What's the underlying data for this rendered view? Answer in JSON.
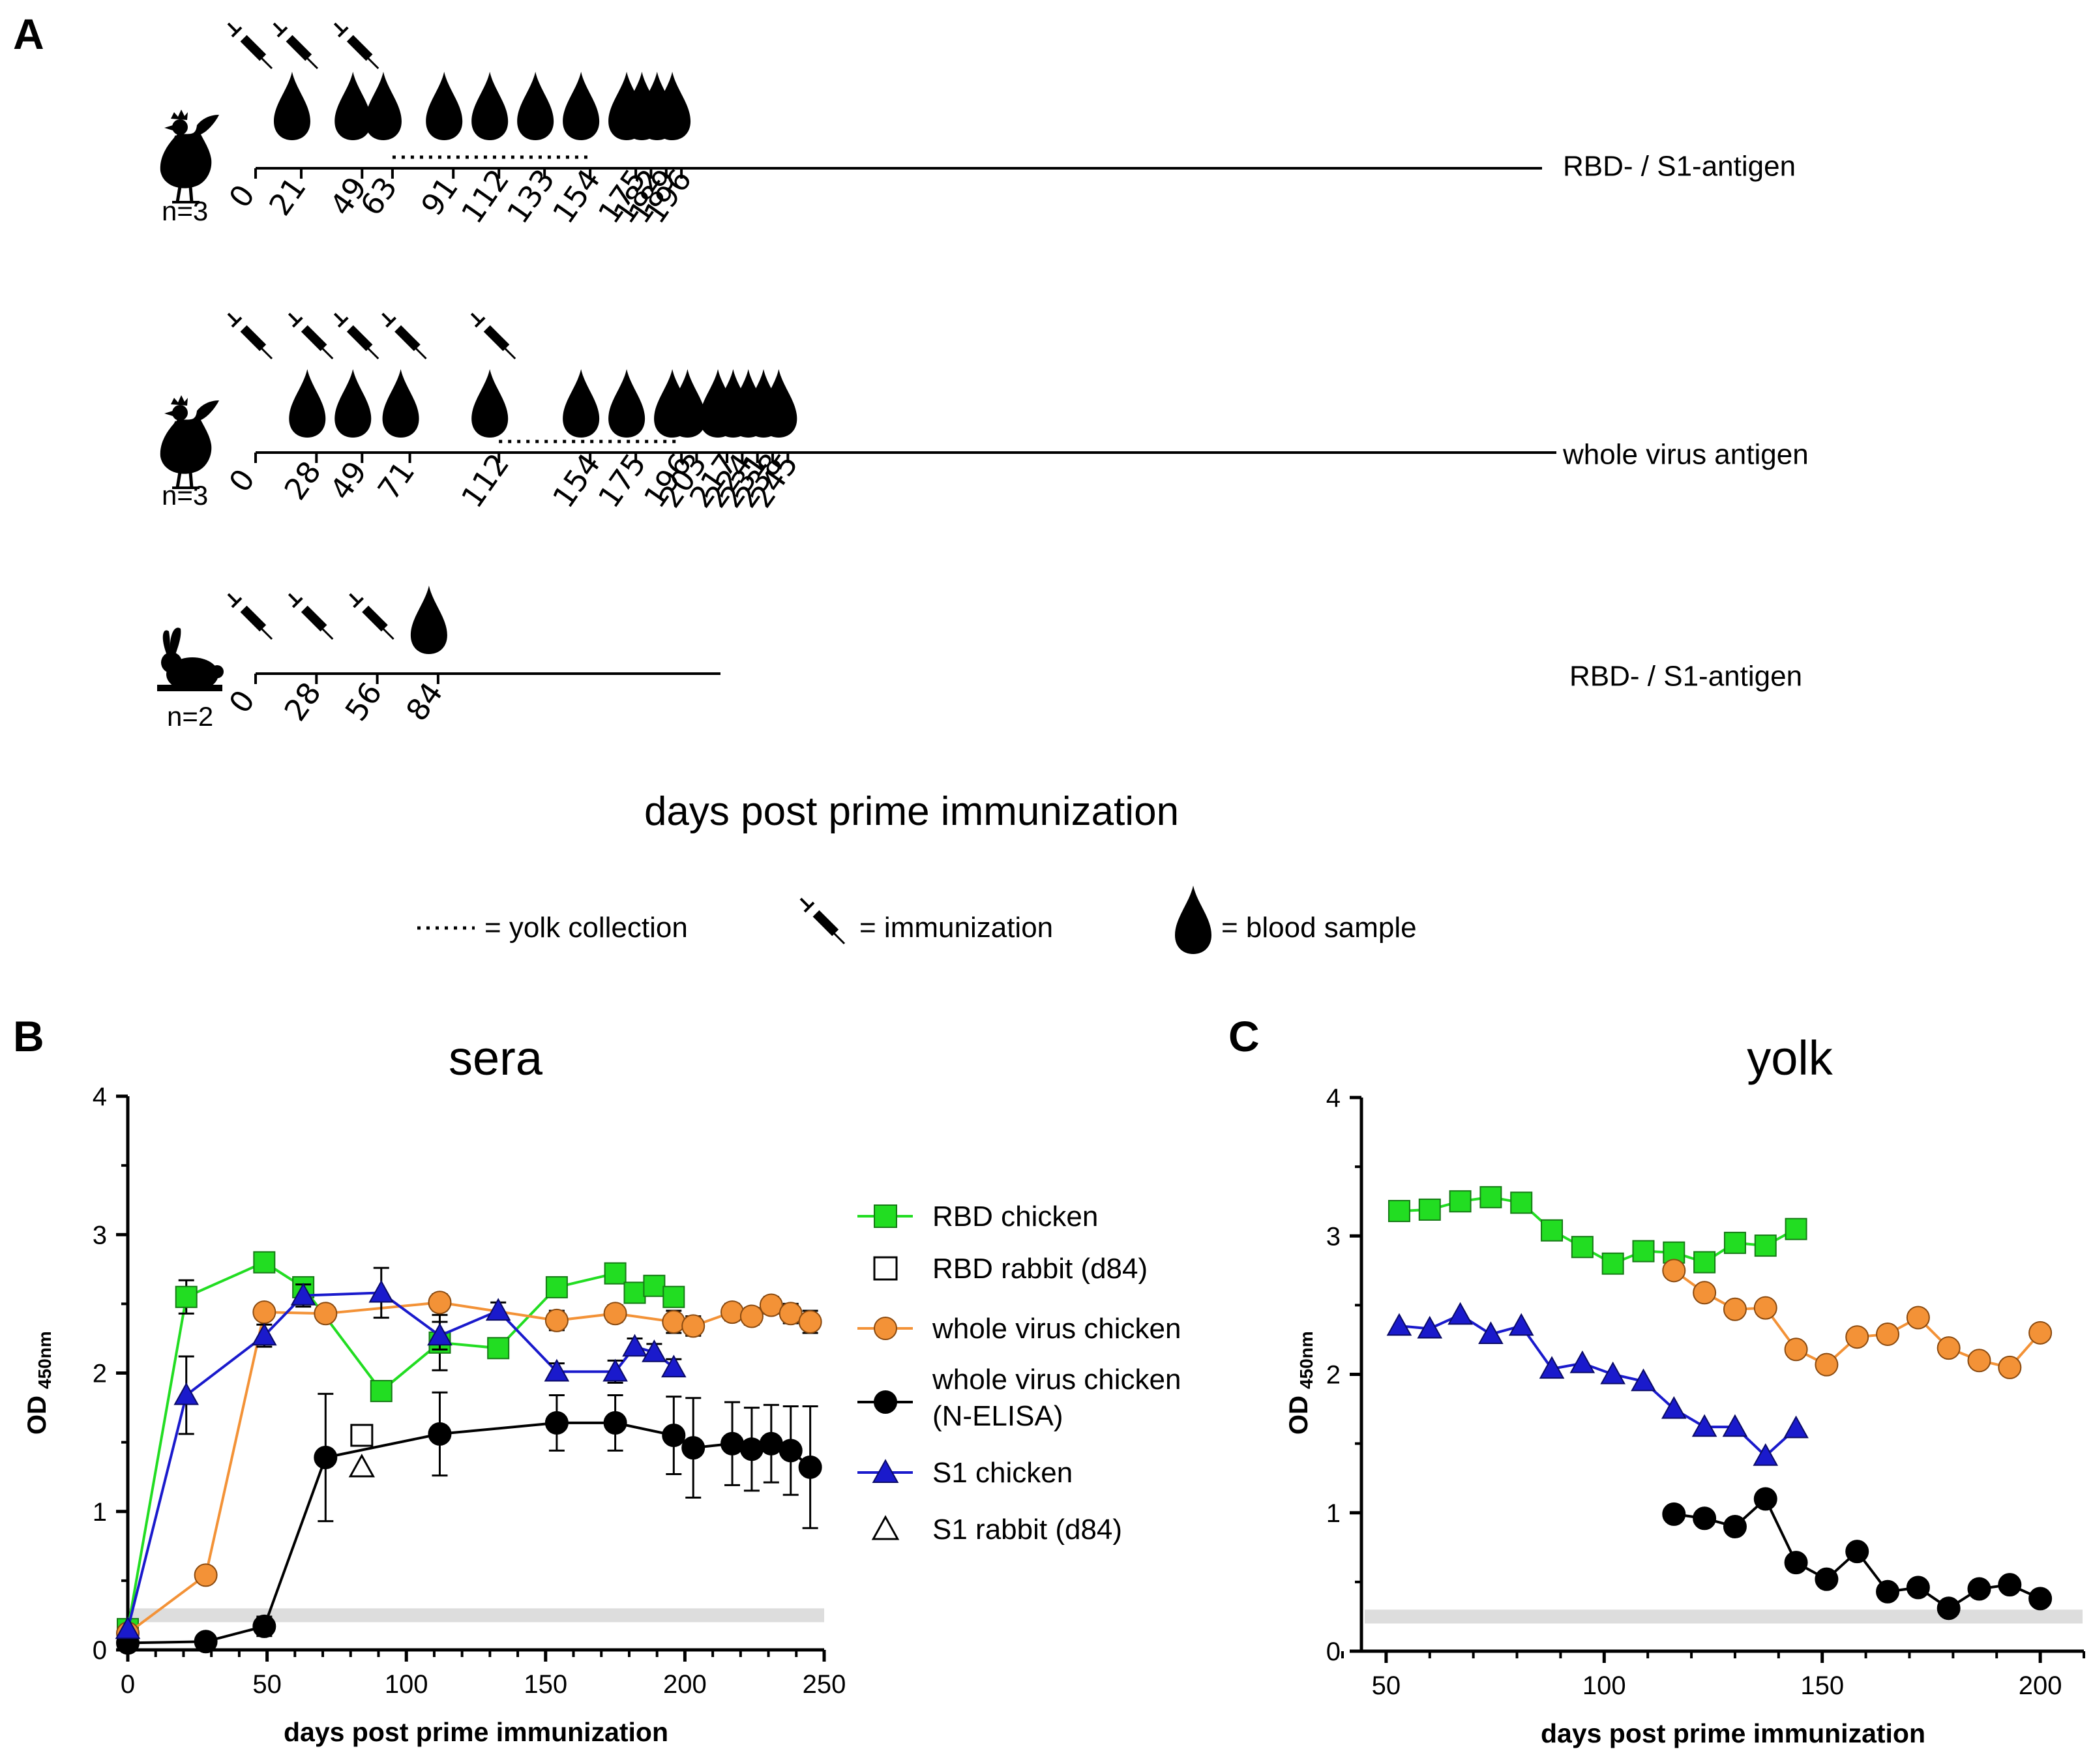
{
  "panel_a": {
    "letter": "A",
    "x_title": "days post prime immunization",
    "rows": [
      {
        "animal": "chicken",
        "n_label": "n=3",
        "antigen_label": "RBD- / S1-antigen",
        "ticks": [
          0,
          21,
          49,
          63,
          91,
          112,
          133,
          154,
          175,
          182,
          189,
          196
        ],
        "tick_labels": [
          "0",
          "21",
          "49",
          "63",
          "91",
          "112",
          "133",
          "154",
          "175",
          "182",
          "189",
          "196"
        ],
        "immunization_days": [
          0,
          21,
          49
        ],
        "blood_days": [
          21,
          49,
          63,
          91,
          112,
          133,
          154,
          175,
          182,
          189,
          196
        ],
        "yolk_collection": [
          63,
          154
        ]
      },
      {
        "animal": "chicken",
        "n_label": "n=3",
        "antigen_label": "whole virus antigen",
        "ticks": [
          0,
          28,
          49,
          71,
          112,
          154,
          175,
          196,
          203,
          217,
          224,
          231,
          238,
          245
        ],
        "tick_labels": [
          "0",
          "28",
          "49",
          "71",
          "112",
          "154",
          "175",
          "196",
          "203",
          "217",
          "224",
          "231",
          "238",
          "245"
        ],
        "immunization_days": [
          0,
          28,
          49,
          71,
          112
        ],
        "blood_days": [
          28,
          49,
          71,
          112,
          154,
          175,
          196,
          203,
          217,
          224,
          231,
          238,
          245
        ],
        "yolk_collection": [
          112,
          196
        ]
      },
      {
        "animal": "rabbit",
        "n_label": "n=2",
        "antigen_label": "RBD- / S1-antigen",
        "ticks": [
          0,
          28,
          56,
          84
        ],
        "tick_labels": [
          "0",
          "28",
          "56",
          "84"
        ],
        "immunization_days": [
          0,
          28,
          56
        ],
        "blood_days": [
          84
        ],
        "yolk_collection": []
      }
    ],
    "legend": {
      "yolk": "= yolk collection",
      "immunization": "= immunization",
      "blood": "= blood sample"
    }
  },
  "panel_b": {
    "letter": "B",
    "title": "sera",
    "ylabel_main": "OD",
    "ylabel_sub": "450nm",
    "xlabel": "days post prime immunization"
  },
  "panel_c": {
    "letter": "C",
    "title": "yolk",
    "ylabel_main": "OD",
    "ylabel_sub": "450nm",
    "xlabel": "days post prime immunization"
  },
  "legend_b": [
    {
      "label": "RBD chicken",
      "series_id": "rbd_chicken"
    },
    {
      "label": "RBD rabbit (d84)",
      "series_id": "rbd_rabbit"
    },
    {
      "label": "whole virus chicken",
      "series_id": "wv_chicken"
    },
    {
      "label": "whole virus chicken",
      "label2": "(N-ELISA)",
      "series_id": "wv_nelisa"
    },
    {
      "label": "S1 chicken",
      "series_id": "s1_chicken"
    },
    {
      "label": "S1 rabbit (d84)",
      "series_id": "s1_rabbit"
    }
  ],
  "colors": {
    "rbd": "#22dd22",
    "wv": "#f39237",
    "n_elisa": "#000000",
    "s1": "#1a1acc",
    "background_band": "#dddddd"
  },
  "chart_data": [
    {
      "id": "sera",
      "type": "line",
      "title": "sera",
      "xlabel": "days post prime immunization",
      "ylabel": "OD 450nm",
      "xlim": [
        0,
        250
      ],
      "ylim": [
        0,
        4
      ],
      "x_ticks": [
        0,
        50,
        100,
        150,
        200,
        250
      ],
      "y_ticks": [
        0,
        1,
        2,
        3,
        4
      ],
      "background_band": [
        0.2,
        0.3
      ],
      "series": [
        {
          "id": "rbd_chicken",
          "marker": "square",
          "color": "#22dd22",
          "filled": true,
          "x": [
            0,
            21,
            49,
            63,
            91,
            112,
            133,
            154,
            175,
            182,
            189,
            196
          ],
          "y": [
            0.15,
            2.55,
            2.8,
            2.62,
            1.87,
            2.22,
            2.18,
            2.62,
            2.72,
            2.58,
            2.63,
            2.55
          ],
          "err": [
            0,
            0.12,
            0.03,
            0.05,
            0.04,
            0.2,
            0.06,
            0.05,
            0.05,
            0.06,
            0.05,
            0.05
          ]
        },
        {
          "id": "wv_chicken",
          "marker": "circle",
          "color": "#f39237",
          "filled": true,
          "x": [
            0,
            28,
            49,
            71,
            112,
            154,
            175,
            196,
            203,
            217,
            224,
            231,
            238,
            245
          ],
          "y": [
            0.12,
            0.54,
            2.44,
            2.43,
            2.51,
            2.38,
            2.43,
            2.37,
            2.34,
            2.44,
            2.41,
            2.49,
            2.43,
            2.37
          ],
          "err": [
            0,
            0.03,
            0.05,
            0.05,
            0.06,
            0.07,
            0.06,
            0.08,
            0.07,
            0.06,
            0.06,
            0.06,
            0.07,
            0.08
          ]
        },
        {
          "id": "wv_nelisa",
          "marker": "circle",
          "color": "#000000",
          "filled": true,
          "x": [
            0,
            28,
            49,
            71,
            112,
            154,
            175,
            196,
            203,
            217,
            224,
            231,
            238,
            245
          ],
          "y": [
            0.05,
            0.06,
            0.17,
            1.39,
            1.56,
            1.64,
            1.64,
            1.55,
            1.46,
            1.49,
            1.45,
            1.49,
            1.44,
            1.32
          ],
          "err": [
            0,
            0.02,
            0.07,
            0.46,
            0.3,
            0.2,
            0.2,
            0.28,
            0.36,
            0.3,
            0.3,
            0.28,
            0.32,
            0.44
          ]
        },
        {
          "id": "s1_chicken",
          "marker": "triangle",
          "color": "#1a1acc",
          "filled": true,
          "x": [
            0,
            21,
            49,
            63,
            91,
            112,
            133,
            154,
            175,
            182,
            189,
            196
          ],
          "y": [
            0.15,
            1.84,
            2.27,
            2.56,
            2.58,
            2.27,
            2.45,
            2.01,
            2.01,
            2.19,
            2.15,
            2.04
          ],
          "err": [
            0,
            0.28,
            0.08,
            0.08,
            0.18,
            0.1,
            0.06,
            0.06,
            0.08,
            0.06,
            0.06,
            0.06
          ]
        },
        {
          "id": "rbd_rabbit",
          "marker": "square",
          "color": "#000000",
          "filled": false,
          "x": [
            84
          ],
          "y": [
            1.55
          ],
          "err": [
            0
          ]
        },
        {
          "id": "s1_rabbit",
          "marker": "triangle",
          "color": "#000000",
          "filled": false,
          "x": [
            84
          ],
          "y": [
            1.32
          ],
          "err": [
            0
          ]
        }
      ]
    },
    {
      "id": "yolk",
      "type": "line",
      "title": "yolk",
      "xlabel": "days post prime immunization",
      "ylabel": "OD 450nm",
      "xlim": [
        40,
        210
      ],
      "ylim": [
        0,
        4
      ],
      "x_ticks": [
        50,
        100,
        150,
        200
      ],
      "y_ticks": [
        0,
        1,
        2,
        3,
        4
      ],
      "background_band": [
        0.2,
        0.3
      ],
      "series": [
        {
          "id": "rbd_chicken",
          "marker": "square",
          "color": "#22dd22",
          "filled": true,
          "x": [
            53,
            60,
            67,
            74,
            81,
            88,
            95,
            102,
            109,
            116,
            123,
            130,
            137,
            144
          ],
          "y": [
            3.18,
            3.19,
            3.25,
            3.28,
            3.24,
            3.04,
            2.92,
            2.8,
            2.89,
            2.88,
            2.81,
            2.95,
            2.93,
            3.05
          ]
        },
        {
          "id": "wv_chicken",
          "marker": "circle",
          "color": "#f39237",
          "filled": true,
          "x": [
            116,
            123,
            130,
            137,
            144,
            151,
            158,
            165,
            172,
            179,
            186,
            193,
            200
          ],
          "y": [
            2.75,
            2.59,
            2.47,
            2.48,
            2.18,
            2.07,
            2.27,
            2.29,
            2.41,
            2.19,
            2.1,
            2.05,
            2.3
          ]
        },
        {
          "id": "s1_chicken",
          "marker": "triangle",
          "color": "#1a1acc",
          "filled": true,
          "x": [
            53,
            60,
            67,
            74,
            81,
            88,
            95,
            102,
            109,
            116,
            123,
            130,
            137,
            144
          ],
          "y": [
            2.35,
            2.33,
            2.43,
            2.29,
            2.35,
            2.04,
            2.08,
            2.0,
            1.95,
            1.75,
            1.62,
            1.62,
            1.41,
            1.61
          ]
        },
        {
          "id": "wv_nelisa",
          "marker": "circle",
          "color": "#000000",
          "filled": true,
          "x": [
            116,
            123,
            130,
            137,
            144,
            151,
            158,
            165,
            172,
            179,
            186,
            193,
            200
          ],
          "y": [
            0.99,
            0.96,
            0.9,
            1.1,
            0.64,
            0.52,
            0.72,
            0.43,
            0.46,
            0.31,
            0.45,
            0.48,
            0.38
          ]
        }
      ]
    }
  ]
}
